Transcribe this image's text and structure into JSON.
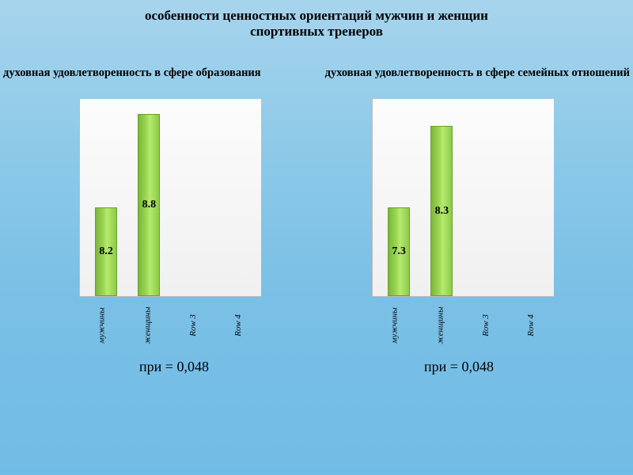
{
  "title_line1": "особенности ценностных ориентаций мужчин и женщин",
  "title_line2": "спортивных тренеров",
  "left": {
    "subtitle": "духовная удовлетворенность в сфере образования",
    "type": "bar",
    "ymax": 10,
    "bar_color": "#8ccb46",
    "background": "#f8f8f8",
    "categories": [
      "мужчины",
      "женщины",
      "Row 3",
      "Row 4"
    ],
    "values": [
      8.2,
      8.8,
      null,
      null
    ],
    "labels": [
      "8.2",
      "8.8",
      "",
      ""
    ],
    "caption": "при     = 0,048"
  },
  "right": {
    "subtitle": "духовная удовлетворенность в сфере семейных отношений",
    "type": "bar",
    "ymax": 10,
    "bar_color": "#8ccb46",
    "background": "#f8f8f8",
    "categories": [
      "мужчины",
      "женщины",
      "Row 3",
      "Row 4"
    ],
    "values": [
      7.3,
      8.3,
      null,
      null
    ],
    "labels": [
      "7.3",
      "8.3",
      "",
      ""
    ],
    "caption": "при     = 0,048"
  }
}
